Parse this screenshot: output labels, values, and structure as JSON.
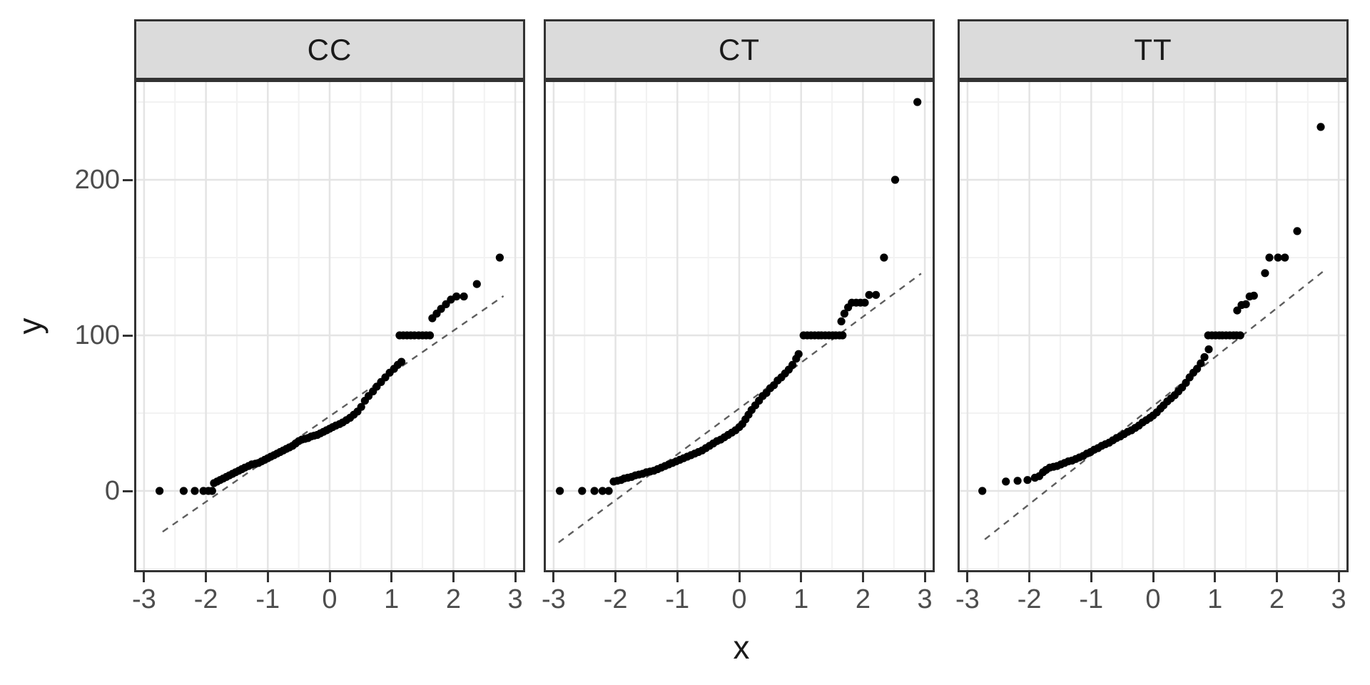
{
  "figure": {
    "background": "#FFFFFF"
  },
  "style": {
    "point_color": "#000000",
    "qq_line_color": "#5E5E5E",
    "grid_major_color": "#E4E4E4",
    "grid_minor_color": "#F2F2F2",
    "panel_border_color": "#333333",
    "strip_fill": "#DBDBDB",
    "title_text_color": "#1A1A1A",
    "tick_text_color": "#4D4D4D"
  },
  "axes": {
    "x_title": "x",
    "y_title": "y",
    "x_ticks": [
      -3,
      -2,
      -1,
      0,
      1,
      2,
      3
    ],
    "y_ticks": [
      0,
      100,
      200
    ],
    "x_minor": [
      -2.5,
      -1.5,
      -0.5,
      0.5,
      1.5,
      2.5
    ],
    "y_minor": [
      -50,
      50,
      150,
      250
    ]
  },
  "chart_data": {
    "type": "scatter",
    "title": "",
    "xlabel": "x",
    "ylabel": "y",
    "xlim": [
      -3.16,
      3.16
    ],
    "ylim": [
      -52.3,
      264.2
    ],
    "grid": true,
    "legend": "none",
    "facets": [
      {
        "label": "CC",
        "qq_line": {
          "slope": 27.5,
          "intercept": 48,
          "x_start": -2.7,
          "x_end": 2.81
        },
        "points": [
          [
            -2.75,
            0
          ],
          [
            -2.36,
            0
          ],
          [
            -2.18,
            0
          ],
          [
            -2.04,
            0
          ],
          [
            -1.96,
            0
          ],
          [
            -1.9,
            0
          ],
          [
            -1.87,
            5
          ],
          [
            -1.82,
            6
          ],
          [
            -1.77,
            7
          ],
          [
            -1.72,
            8
          ],
          [
            -1.67,
            9
          ],
          [
            -1.62,
            10
          ],
          [
            -1.57,
            11
          ],
          [
            -1.52,
            12
          ],
          [
            -1.47,
            13
          ],
          [
            -1.42,
            14
          ],
          [
            -1.37,
            15
          ],
          [
            -1.31,
            16
          ],
          [
            -1.26,
            17
          ],
          [
            -1.2,
            17.5
          ],
          [
            -1.15,
            18
          ],
          [
            -1.1,
            19
          ],
          [
            -1.05,
            20
          ],
          [
            -1,
            21
          ],
          [
            -0.95,
            22
          ],
          [
            -0.9,
            23
          ],
          [
            -0.85,
            24
          ],
          [
            -0.8,
            25
          ],
          [
            -0.75,
            26
          ],
          [
            -0.7,
            27
          ],
          [
            -0.65,
            28
          ],
          [
            -0.6,
            29
          ],
          [
            -0.55,
            30.5
          ],
          [
            -0.5,
            32
          ],
          [
            -0.45,
            33
          ],
          [
            -0.4,
            33.5
          ],
          [
            -0.35,
            34
          ],
          [
            -0.3,
            35
          ],
          [
            -0.25,
            35.5
          ],
          [
            -0.2,
            36
          ],
          [
            -0.15,
            37
          ],
          [
            -0.1,
            38
          ],
          [
            -0.05,
            39
          ],
          [
            0,
            40
          ],
          [
            0.05,
            41
          ],
          [
            0.1,
            42
          ],
          [
            0.16,
            43
          ],
          [
            0.21,
            44
          ],
          [
            0.27,
            45.5
          ],
          [
            0.33,
            47
          ],
          [
            0.39,
            49
          ],
          [
            0.45,
            51
          ],
          [
            0.51,
            54
          ],
          [
            0.57,
            58
          ],
          [
            0.63,
            61
          ],
          [
            0.7,
            64
          ],
          [
            0.76,
            67
          ],
          [
            0.83,
            70
          ],
          [
            0.9,
            73
          ],
          [
            0.97,
            76
          ],
          [
            1.04,
            78.5
          ],
          [
            1.1,
            81
          ],
          [
            1.16,
            83
          ],
          [
            1.13,
            100
          ],
          [
            1.19,
            100
          ],
          [
            1.25,
            100
          ],
          [
            1.31,
            100
          ],
          [
            1.37,
            100
          ],
          [
            1.44,
            100
          ],
          [
            1.5,
            100
          ],
          [
            1.56,
            100
          ],
          [
            1.62,
            100
          ],
          [
            1.66,
            111
          ],
          [
            1.73,
            114
          ],
          [
            1.8,
            117
          ],
          [
            1.88,
            120
          ],
          [
            1.96,
            123
          ],
          [
            2.05,
            125
          ],
          [
            2.17,
            125
          ],
          [
            2.38,
            133
          ],
          [
            2.75,
            150
          ]
        ]
      },
      {
        "label": "CT",
        "qq_line": {
          "slope": 29.5,
          "intercept": 53,
          "x_start": -2.92,
          "x_end": 2.94
        },
        "points": [
          [
            -2.9,
            0
          ],
          [
            -2.54,
            0
          ],
          [
            -2.34,
            0
          ],
          [
            -2.21,
            0
          ],
          [
            -2.11,
            0
          ],
          [
            -2.03,
            6
          ],
          [
            -1.97,
            6.5
          ],
          [
            -1.91,
            7
          ],
          [
            -1.86,
            8
          ],
          [
            -1.8,
            8.5
          ],
          [
            -1.74,
            9
          ],
          [
            -1.68,
            10
          ],
          [
            -1.62,
            10.5
          ],
          [
            -1.56,
            11
          ],
          [
            -1.5,
            12
          ],
          [
            -1.44,
            12.5
          ],
          [
            -1.38,
            13
          ],
          [
            -1.32,
            14
          ],
          [
            -1.26,
            15
          ],
          [
            -1.2,
            16
          ],
          [
            -1.14,
            17
          ],
          [
            -1.08,
            18
          ],
          [
            -1.02,
            19
          ],
          [
            -0.96,
            20
          ],
          [
            -0.9,
            21
          ],
          [
            -0.84,
            22
          ],
          [
            -0.78,
            23
          ],
          [
            -0.72,
            24
          ],
          [
            -0.66,
            25
          ],
          [
            -0.6,
            26
          ],
          [
            -0.54,
            27.5
          ],
          [
            -0.48,
            29
          ],
          [
            -0.42,
            30.5
          ],
          [
            -0.36,
            32
          ],
          [
            -0.3,
            33
          ],
          [
            -0.24,
            34.5
          ],
          [
            -0.18,
            36
          ],
          [
            -0.12,
            37.5
          ],
          [
            -0.06,
            39
          ],
          [
            0,
            41
          ],
          [
            0.05,
            43
          ],
          [
            0.1,
            46
          ],
          [
            0.15,
            49
          ],
          [
            0.2,
            52
          ],
          [
            0.26,
            55
          ],
          [
            0.32,
            58
          ],
          [
            0.38,
            61
          ],
          [
            0.44,
            63
          ],
          [
            0.5,
            66
          ],
          [
            0.56,
            68
          ],
          [
            0.62,
            71
          ],
          [
            0.68,
            73
          ],
          [
            0.74,
            75.5
          ],
          [
            0.8,
            78
          ],
          [
            0.86,
            81
          ],
          [
            0.92,
            85
          ],
          [
            0.96,
            88
          ],
          [
            1.04,
            100
          ],
          [
            1.1,
            100
          ],
          [
            1.16,
            100
          ],
          [
            1.22,
            100
          ],
          [
            1.28,
            100
          ],
          [
            1.33,
            100
          ],
          [
            1.39,
            100
          ],
          [
            1.45,
            100
          ],
          [
            1.51,
            100
          ],
          [
            1.56,
            100
          ],
          [
            1.62,
            100
          ],
          [
            1.67,
            100
          ],
          [
            1.65,
            109
          ],
          [
            1.7,
            114
          ],
          [
            1.76,
            118
          ],
          [
            1.82,
            121
          ],
          [
            1.89,
            121
          ],
          [
            1.96,
            121
          ],
          [
            2.03,
            121
          ],
          [
            2.1,
            126
          ],
          [
            2.21,
            126
          ],
          [
            2.34,
            150
          ],
          [
            2.52,
            200
          ],
          [
            2.88,
            250
          ]
        ]
      },
      {
        "label": "TT",
        "qq_line": {
          "slope": 31.5,
          "intercept": 54.5,
          "x_start": -2.72,
          "x_end": 2.76
        },
        "points": [
          [
            -2.76,
            0
          ],
          [
            -2.38,
            6
          ],
          [
            -2.19,
            6.5
          ],
          [
            -2.03,
            7
          ],
          [
            -1.91,
            8.5
          ],
          [
            -1.84,
            9.5
          ],
          [
            -1.78,
            12
          ],
          [
            -1.73,
            13.5
          ],
          [
            -1.67,
            15
          ],
          [
            -1.61,
            15.5
          ],
          [
            -1.55,
            16
          ],
          [
            -1.49,
            17
          ],
          [
            -1.43,
            18
          ],
          [
            -1.37,
            19
          ],
          [
            -1.31,
            19.5
          ],
          [
            -1.25,
            20.5
          ],
          [
            -1.19,
            21.5
          ],
          [
            -1.13,
            22.5
          ],
          [
            -1.07,
            24
          ],
          [
            -1.01,
            25
          ],
          [
            -0.95,
            26.5
          ],
          [
            -0.89,
            27.5
          ],
          [
            -0.83,
            29
          ],
          [
            -0.77,
            30
          ],
          [
            -0.71,
            31
          ],
          [
            -0.65,
            32.5
          ],
          [
            -0.59,
            34
          ],
          [
            -0.53,
            35
          ],
          [
            -0.47,
            36.5
          ],
          [
            -0.41,
            38
          ],
          [
            -0.35,
            39
          ],
          [
            -0.29,
            40.5
          ],
          [
            -0.23,
            42
          ],
          [
            -0.17,
            44
          ],
          [
            -0.11,
            45.5
          ],
          [
            -0.05,
            47
          ],
          [
            0,
            48.5
          ],
          [
            0.06,
            50.5
          ],
          [
            0.12,
            53
          ],
          [
            0.17,
            55
          ],
          [
            0.23,
            57.5
          ],
          [
            0.29,
            59.5
          ],
          [
            0.35,
            61.5
          ],
          [
            0.41,
            64
          ],
          [
            0.47,
            66.5
          ],
          [
            0.53,
            69.5
          ],
          [
            0.59,
            73
          ],
          [
            0.65,
            76
          ],
          [
            0.71,
            78.5
          ],
          [
            0.77,
            82
          ],
          [
            0.83,
            86
          ],
          [
            0.9,
            91
          ],
          [
            0.89,
            100
          ],
          [
            0.95,
            100
          ],
          [
            1.01,
            100
          ],
          [
            1.07,
            100
          ],
          [
            1.12,
            100
          ],
          [
            1.18,
            100
          ],
          [
            1.24,
            100
          ],
          [
            1.3,
            100
          ],
          [
            1.35,
            100
          ],
          [
            1.41,
            100
          ],
          [
            1.36,
            116
          ],
          [
            1.43,
            119.5
          ],
          [
            1.5,
            120
          ],
          [
            1.56,
            125
          ],
          [
            1.63,
            125.5
          ],
          [
            1.81,
            140
          ],
          [
            1.88,
            150
          ],
          [
            2.02,
            150
          ],
          [
            2.13,
            150
          ],
          [
            2.33,
            167
          ],
          [
            2.71,
            234
          ]
        ]
      }
    ]
  }
}
